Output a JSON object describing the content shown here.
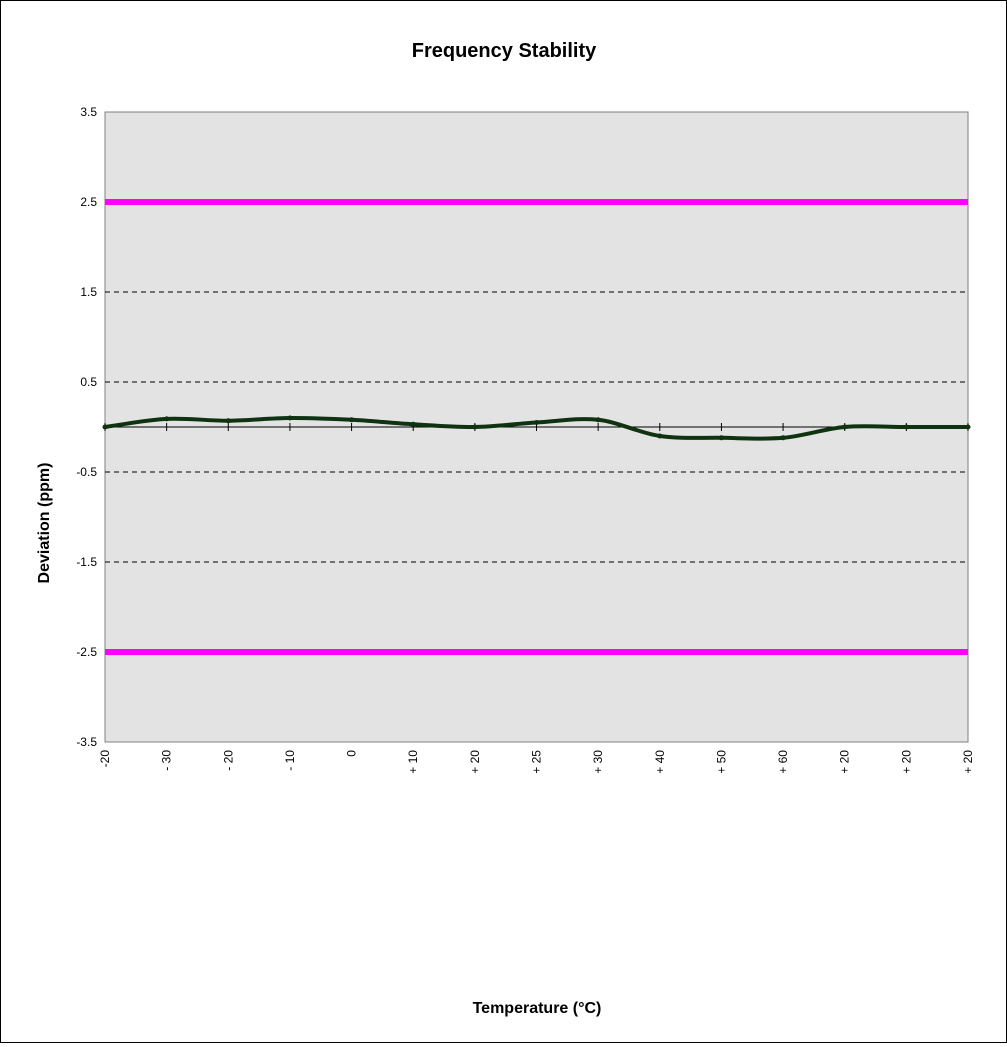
{
  "chart_data": {
    "type": "line",
    "title": "Frequency Stability",
    "xlabel": "Temperature (°C)",
    "ylabel": "Deviation (ppm)",
    "categories": [
      "-20",
      "- 30",
      "- 20",
      "- 10",
      "0",
      "+ 10",
      "+ 20",
      "+ 25",
      "+ 30",
      "+ 40",
      "+ 50",
      "+ 60",
      "+ 20",
      "+ 20",
      "+ 20"
    ],
    "series": [
      {
        "values": [
          0.0,
          0.09,
          0.07,
          0.1,
          0.08,
          0.03,
          0.0,
          0.05,
          0.08,
          -0.1,
          -0.12,
          -0.12,
          0.0,
          0.0,
          0.0
        ]
      }
    ],
    "limits": [
      2.5,
      -2.5
    ],
    "ylim": [
      -3.5,
      3.5
    ],
    "yticks": [
      3.5,
      2.5,
      1.5,
      0.5,
      -0.5,
      -1.5,
      -2.5,
      -3.5
    ],
    "ytick_labels": [
      "3.5",
      "2.5",
      "1.5",
      "0.5",
      "-0.5",
      "-1.5",
      "-2.5",
      "-3.5"
    ],
    "grid": true,
    "colors": {
      "plot_background": "#e3e3e3",
      "series_line": "#0f3310",
      "limit_line": "#ff00ff",
      "grid_line": "#000000"
    }
  }
}
